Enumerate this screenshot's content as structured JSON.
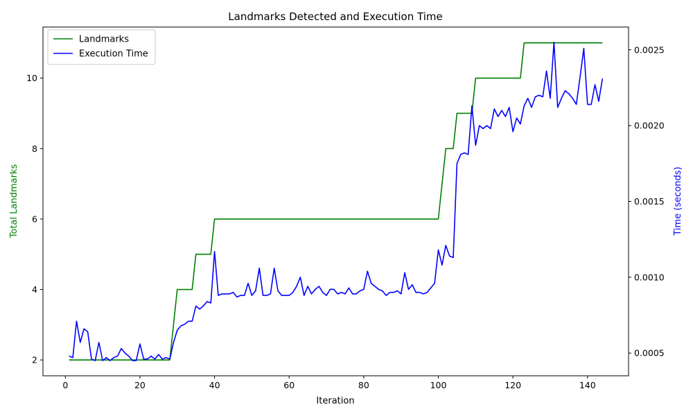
{
  "chart_data": {
    "type": "line",
    "title": "Landmarks Detected and Execution Time",
    "xlabel": "Iteration",
    "ylabel_left": "Total Landmarks",
    "ylabel_right": "Time (seconds)",
    "xlim": [
      -6,
      151
    ],
    "ylim_left": [
      1.55,
      11.45
    ],
    "ylim_right": [
      0.00035,
      0.00265
    ],
    "x_ticks": [
      0,
      20,
      40,
      60,
      80,
      100,
      120,
      140
    ],
    "y_left_ticks": [
      2,
      4,
      6,
      8,
      10
    ],
    "y_right_ticks": [
      0.0005,
      0.001,
      0.0015,
      0.002,
      0.0025
    ],
    "y_right_tick_labels": [
      "0.0005",
      "0.0010",
      "0.0015",
      "0.0020",
      "0.0025"
    ],
    "grid": false,
    "legend_position": "upper-left",
    "colors": {
      "left_axis": "#008000",
      "right_axis": "#0000ff"
    },
    "series": [
      {
        "name": "Landmarks",
        "axis": "left",
        "color": "#008000",
        "x": [
          1,
          28,
          30,
          34,
          35,
          39,
          40,
          100,
          102,
          104,
          105,
          109,
          110,
          122,
          123,
          144
        ],
        "values": [
          2,
          2,
          4,
          4,
          5,
          5,
          6,
          6,
          8,
          8,
          9,
          9,
          10,
          10,
          11,
          11
        ]
      },
      {
        "name": "Execution Time",
        "axis": "right",
        "color": "#0000ff",
        "x": [
          1,
          2,
          3,
          4,
          5,
          6,
          7,
          8,
          9,
          10,
          11,
          12,
          13,
          14,
          15,
          16,
          17,
          18,
          19,
          20,
          21,
          22,
          23,
          24,
          25,
          26,
          27,
          28,
          29,
          30,
          31,
          32,
          33,
          34,
          35,
          36,
          37,
          38,
          39,
          40,
          41,
          42,
          43,
          44,
          45,
          46,
          47,
          48,
          49,
          50,
          51,
          52,
          53,
          54,
          55,
          56,
          57,
          58,
          59,
          60,
          61,
          62,
          63,
          64,
          65,
          66,
          67,
          68,
          69,
          70,
          71,
          72,
          73,
          74,
          75,
          76,
          77,
          78,
          79,
          80,
          81,
          82,
          83,
          84,
          85,
          86,
          87,
          88,
          89,
          90,
          91,
          92,
          93,
          94,
          95,
          96,
          97,
          98,
          99,
          100,
          101,
          102,
          103,
          104,
          105,
          106,
          107,
          108,
          109,
          110,
          111,
          112,
          113,
          114,
          115,
          116,
          117,
          118,
          119,
          120,
          121,
          122,
          123,
          124,
          125,
          126,
          127,
          128,
          129,
          130,
          131,
          132,
          133,
          134,
          135,
          136,
          137,
          138,
          139,
          140,
          141,
          142,
          143,
          144
        ],
        "values": [
          0.00048,
          0.00047,
          0.00071,
          0.00057,
          0.00066,
          0.00064,
          0.00046,
          0.00045,
          0.00057,
          0.00045,
          0.00047,
          0.00045,
          0.00047,
          0.00048,
          0.00053,
          0.0005,
          0.00048,
          0.00045,
          0.00045,
          0.00056,
          0.00046,
          0.00046,
          0.00048,
          0.00046,
          0.00049,
          0.00046,
          0.00047,
          0.00046,
          0.00057,
          0.00065,
          0.00068,
          0.00069,
          0.00071,
          0.00071,
          0.00081,
          0.00079,
          0.00081,
          0.00084,
          0.00083,
          0.00117,
          0.00088,
          0.00089,
          0.00089,
          0.00089,
          0.0009,
          0.00087,
          0.00088,
          0.00088,
          0.00096,
          0.00088,
          0.00091,
          0.00106,
          0.00088,
          0.00088,
          0.00089,
          0.00106,
          0.00091,
          0.00088,
          0.00088,
          0.00088,
          0.0009,
          0.00094,
          0.001,
          0.00088,
          0.00094,
          0.00089,
          0.00092,
          0.00094,
          0.0009,
          0.00088,
          0.00092,
          0.00092,
          0.00089,
          0.0009,
          0.00089,
          0.00093,
          0.00089,
          0.00089,
          0.00091,
          0.00092,
          0.00104,
          0.00096,
          0.00094,
          0.00092,
          0.00091,
          0.00088,
          0.0009,
          0.0009,
          0.00091,
          0.00089,
          0.00103,
          0.00092,
          0.00095,
          0.0009,
          0.0009,
          0.00089,
          0.0009,
          0.00093,
          0.00096,
          0.00118,
          0.00108,
          0.00121,
          0.00114,
          0.00113,
          0.00175,
          0.00181,
          0.00182,
          0.00181,
          0.00213,
          0.00187,
          0.002,
          0.00198,
          0.002,
          0.00198,
          0.00211,
          0.00206,
          0.0021,
          0.00206,
          0.00212,
          0.00196,
          0.00205,
          0.00201,
          0.00213,
          0.00218,
          0.00212,
          0.00219,
          0.0022,
          0.00219,
          0.00236,
          0.00218,
          0.00255,
          0.00212,
          0.00218,
          0.00223,
          0.00221,
          0.00218,
          0.00214,
          0.00232,
          0.00251,
          0.00214,
          0.00214,
          0.00227,
          0.00216,
          0.00231
        ]
      }
    ]
  }
}
